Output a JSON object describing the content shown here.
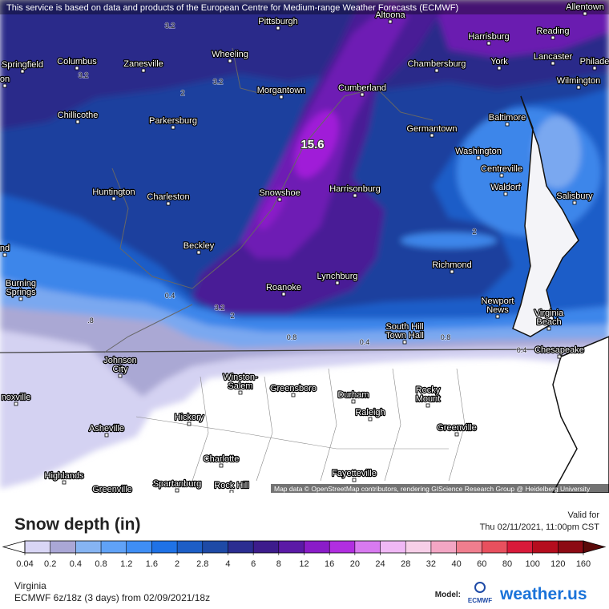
{
  "header": {
    "attribution": "This service is based on data and products of the European Centre for Medium-range Weather Forecasts (ECMWF)"
  },
  "map": {
    "max_label": "15.6",
    "credit": "Map data © OpenStreetMap contributors, rendering GIScience Research Group @ Heidelberg University",
    "cities": [
      [
        "Allentown"
      ],
      [
        "Altoona"
      ],
      [
        "Pittsburgh"
      ],
      [
        "Harrisburg"
      ],
      [
        "Reading"
      ],
      [
        "Springfield"
      ],
      [
        "Columbus"
      ],
      [
        "Zanesville"
      ],
      [
        "Wheeling"
      ],
      [
        "Chambersburg"
      ],
      [
        "York"
      ],
      [
        "Lancaster"
      ],
      [
        "Philade"
      ],
      [
        "Wilmington"
      ],
      [
        "Morgantown"
      ],
      [
        "Cumberland"
      ],
      [
        "Chillicothe"
      ],
      [
        "Parkersburg"
      ],
      [
        "Baltimore"
      ],
      [
        "Germantown"
      ],
      [
        "Washington"
      ],
      [
        "Centreville"
      ],
      [
        "Waldorf"
      ],
      [
        "Huntington"
      ],
      [
        "Charleston"
      ],
      [
        "Snowshoe"
      ],
      [
        "Harrisonburg"
      ],
      [
        "Salisbury"
      ],
      [
        "Beckley"
      ],
      [
        "Richmond"
      ],
      [
        "Lynchburg"
      ],
      [
        "Burning",
        "Springs"
      ],
      [
        "Roanoke"
      ],
      [
        "Newport",
        "News"
      ],
      [
        "Virginia",
        "Beach"
      ],
      [
        "South Hill",
        "Town Hall"
      ],
      [
        "Chesapeake"
      ],
      [
        "Johnson",
        "City"
      ],
      [
        "Winston-",
        "Salem"
      ],
      [
        "Greensboro"
      ],
      [
        "Durham"
      ],
      [
        "Rocky",
        "Mount"
      ],
      [
        "noxville"
      ],
      [
        "Raleigh"
      ],
      [
        "Hickory"
      ],
      [
        "Asheville"
      ],
      [
        "Greenville"
      ],
      [
        "Charlotte"
      ],
      [
        "Fayetteville"
      ],
      [
        "Highlands"
      ],
      [
        "Spartanburg"
      ],
      [
        "Rock Hill"
      ],
      [
        "Greenville"
      ],
      [
        "on"
      ],
      [
        "nd"
      ]
    ],
    "contour_labels": [
      "3.2",
      "3.2",
      "2",
      "3.2",
      "2",
      "0.4",
      ".8",
      "0.8",
      "0.4",
      "0.8",
      "0.4",
      "2",
      "3.2"
    ]
  },
  "legend": {
    "title": "Snow depth (in)",
    "valid_label": "Valid for",
    "valid_time": "Thu 02/11/2021, 11:00pm CST",
    "ticks": [
      0.04,
      0.2,
      0.4,
      0.8,
      1.2,
      1.6,
      2,
      2.8,
      4,
      6,
      8,
      12,
      16,
      20,
      24,
      28,
      32,
      40,
      60,
      80,
      100,
      120,
      160
    ],
    "colors": [
      "#d9d6f5",
      "#aaa7d6",
      "#86b4f2",
      "#60a2f7",
      "#3f8ef5",
      "#1f72e6",
      "#1d5ec6",
      "#1e4aa6",
      "#2b2d91",
      "#3d1c8c",
      "#5b1aa6",
      "#8a1cc8",
      "#b12ee0",
      "#d87af0",
      "#f0b8f5",
      "#f7cfe8",
      "#f3a6c4",
      "#f07e8e",
      "#e8505e",
      "#d91a3a",
      "#b50d1e",
      "#8c0a14"
    ],
    "over_color": "#5a0a0a"
  },
  "footer": {
    "region": "Virginia",
    "run": "ECMWF 6z/18z (3 days) from 02/09/2021/18z",
    "model_label": "Model:",
    "model_logo": "ECMWF",
    "brand": "weather.us"
  }
}
